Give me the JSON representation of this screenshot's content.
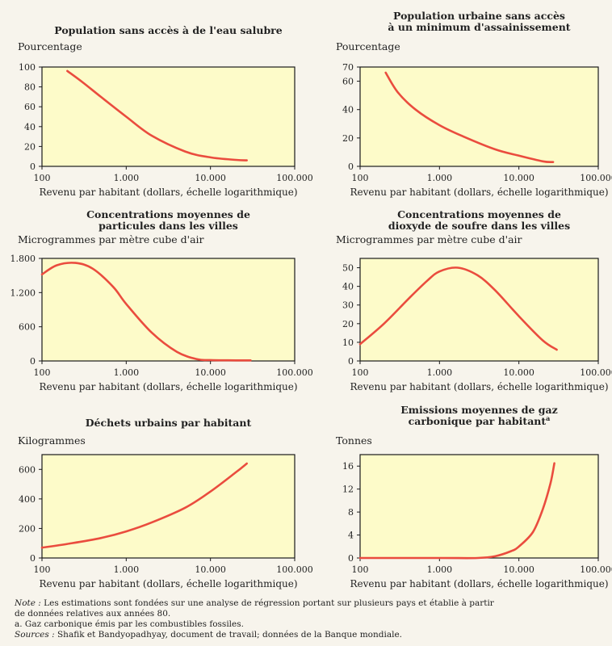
{
  "chart_data": [
    {
      "type": "line",
      "title": [
        "Population sans accès à de l'eau salubre"
      ],
      "ylabel": "Pourcentage",
      "xlabel": "Revenu par habitant (dollars, échelle logarithmique)",
      "xscale": "log",
      "xlim": [
        100,
        100000
      ],
      "ylim": [
        0,
        100
      ],
      "xticks": [
        100,
        1000,
        10000,
        100000
      ],
      "xtick_labels": [
        "100",
        "1.000",
        "10.000",
        "100.000"
      ],
      "yticks": [
        0,
        20,
        40,
        60,
        80,
        100
      ],
      "ytick_labels": [
        "0",
        "20",
        "40",
        "60",
        "80",
        "100"
      ],
      "series": [
        {
          "x": [
            200,
            300,
            500,
            1000,
            2000,
            5000,
            10000,
            20000,
            27000
          ],
          "y": [
            96,
            85,
            70,
            50,
            31,
            15,
            9,
            6.5,
            6
          ]
        }
      ],
      "color": "#ea4c3e",
      "background": "#fdfbc9"
    },
    {
      "type": "line",
      "title": [
        "Population urbaine sans accès",
        "à un minimum d'assainissement"
      ],
      "ylabel": "Pourcentage",
      "xlabel": "Revenu par habitant (dollars, échelle logarithmique)",
      "xscale": "log",
      "xlim": [
        100,
        100000
      ],
      "ylim": [
        0,
        70
      ],
      "xticks": [
        100,
        1000,
        10000,
        100000
      ],
      "xtick_labels": [
        "100",
        "1.000",
        "10.000",
        "100.000"
      ],
      "yticks": [
        0,
        20,
        40,
        60,
        70
      ],
      "ytick_labels": [
        "0",
        "20",
        "40",
        "60",
        "70"
      ],
      "series": [
        {
          "x": [
            210,
            300,
            500,
            1000,
            2000,
            5000,
            10000,
            20000,
            27000
          ],
          "y": [
            66,
            52,
            40,
            29,
            21,
            12,
            7.5,
            3.5,
            3
          ]
        }
      ],
      "color": "#ea4c3e",
      "background": "#fdfbc9"
    },
    {
      "type": "line",
      "title": [
        "Concentrations moyennes de",
        "particules dans les villes"
      ],
      "ylabel": "Microgrammes par mètre cube d'air",
      "xlabel": "Revenu par habitant (dollars, échelle logarithmique)",
      "xscale": "log",
      "xlim": [
        100,
        100000
      ],
      "ylim": [
        0,
        1800
      ],
      "xticks": [
        100,
        1000,
        10000,
        100000
      ],
      "xtick_labels": [
        "100",
        "1.000",
        "10.000",
        "100.000"
      ],
      "yticks": [
        0,
        600,
        1200,
        1800
      ],
      "ytick_labels": [
        "0",
        "600",
        "1.200",
        "1.800"
      ],
      "series": [
        {
          "x": [
            100,
            150,
            250,
            400,
            700,
            1000,
            2000,
            4000,
            7000,
            10000,
            20000,
            30000
          ],
          "y": [
            1520,
            1680,
            1720,
            1620,
            1300,
            1000,
            500,
            160,
            30,
            15,
            10,
            10
          ]
        }
      ],
      "color": "#ea4c3e",
      "background": "#fdfbc9"
    },
    {
      "type": "line",
      "title": [
        "Concentrations moyennes de",
        "dioxyde de soufre dans les villes"
      ],
      "ylabel": "Microgrammes par mètre cube d'air",
      "xlabel": "Revenu par habitant (dollars, échelle logarithmique)",
      "xscale": "log",
      "xlim": [
        100,
        100000
      ],
      "ylim": [
        0,
        55
      ],
      "xticks": [
        100,
        1000,
        10000,
        100000
      ],
      "xtick_labels": [
        "100",
        "1.000",
        "10.000",
        "100.000"
      ],
      "yticks": [
        0,
        10,
        20,
        30,
        40,
        50
      ],
      "ytick_labels": [
        "0",
        "10",
        "20",
        "30",
        "40",
        "50"
      ],
      "series": [
        {
          "x": [
            100,
            200,
            400,
            700,
            1000,
            1700,
            3000,
            5000,
            10000,
            20000,
            30000
          ],
          "y": [
            9,
            20,
            33,
            43,
            48,
            50,
            46,
            38,
            24,
            11,
            6
          ]
        }
      ],
      "color": "#ea4c3e",
      "background": "#fdfbc9"
    },
    {
      "type": "line",
      "title": [
        "Déchets urbains par habitant"
      ],
      "ylabel": "Kilogrammes",
      "xlabel": "Revenu par habitant (dollars, échelle logarithmique)",
      "xscale": "log",
      "xlim": [
        100,
        100000
      ],
      "ylim": [
        0,
        700
      ],
      "xticks": [
        100,
        1000,
        10000,
        100000
      ],
      "xtick_labels": [
        "100",
        "1.000",
        "10.000",
        "100.000"
      ],
      "yticks": [
        0,
        200,
        400,
        600
      ],
      "ytick_labels": [
        "0",
        "200",
        "400",
        "600"
      ],
      "series": [
        {
          "x": [
            100,
            200,
            500,
            1000,
            2000,
            5000,
            10000,
            20000,
            27000
          ],
          "y": [
            70,
            95,
            135,
            180,
            240,
            340,
            450,
            580,
            640
          ]
        }
      ],
      "color": "#ea4c3e",
      "background": "#fdfbc9"
    },
    {
      "type": "line",
      "title": [
        "Emissions moyennes de gaz",
        "carbonique par habitant"
      ],
      "title_footnote": "a",
      "ylabel": "Tonnes",
      "xlabel": "Revenu par habitant (dollars, échelle logarithmique)",
      "xscale": "log",
      "xlim": [
        100,
        100000
      ],
      "ylim": [
        0,
        18
      ],
      "xticks": [
        100,
        1000,
        10000,
        100000
      ],
      "xtick_labels": [
        "100",
        "1.000",
        "10.000",
        "100.000"
      ],
      "yticks": [
        0,
        4,
        8,
        12,
        16
      ],
      "ytick_labels": [
        "0",
        "4",
        "8",
        "12",
        "16"
      ],
      "series": [
        {
          "x": [
            100,
            1000,
            3000,
            5000,
            8000,
            10000,
            15000,
            20000,
            25000,
            28000
          ],
          "y": [
            0,
            0,
            0,
            0.3,
            1.2,
            2,
            4.5,
            8.5,
            13,
            16.5
          ]
        }
      ],
      "color": "#ea4c3e",
      "background": "#fdfbc9"
    }
  ],
  "notes": {
    "note_label": "Note :",
    "note_text": " Les estimations sont fondées sur une analyse de régression portant sur plusieurs pays et établie à partir",
    "note_text2": "de données relatives aux années 80.",
    "footnote_a": "a.   Gaz carbonique émis par les combustibles fossiles.",
    "sources_label": "Sources :",
    "sources_text": " Shafik et Bandyopadhyay, document de travail; données de la Banque mondiale."
  }
}
